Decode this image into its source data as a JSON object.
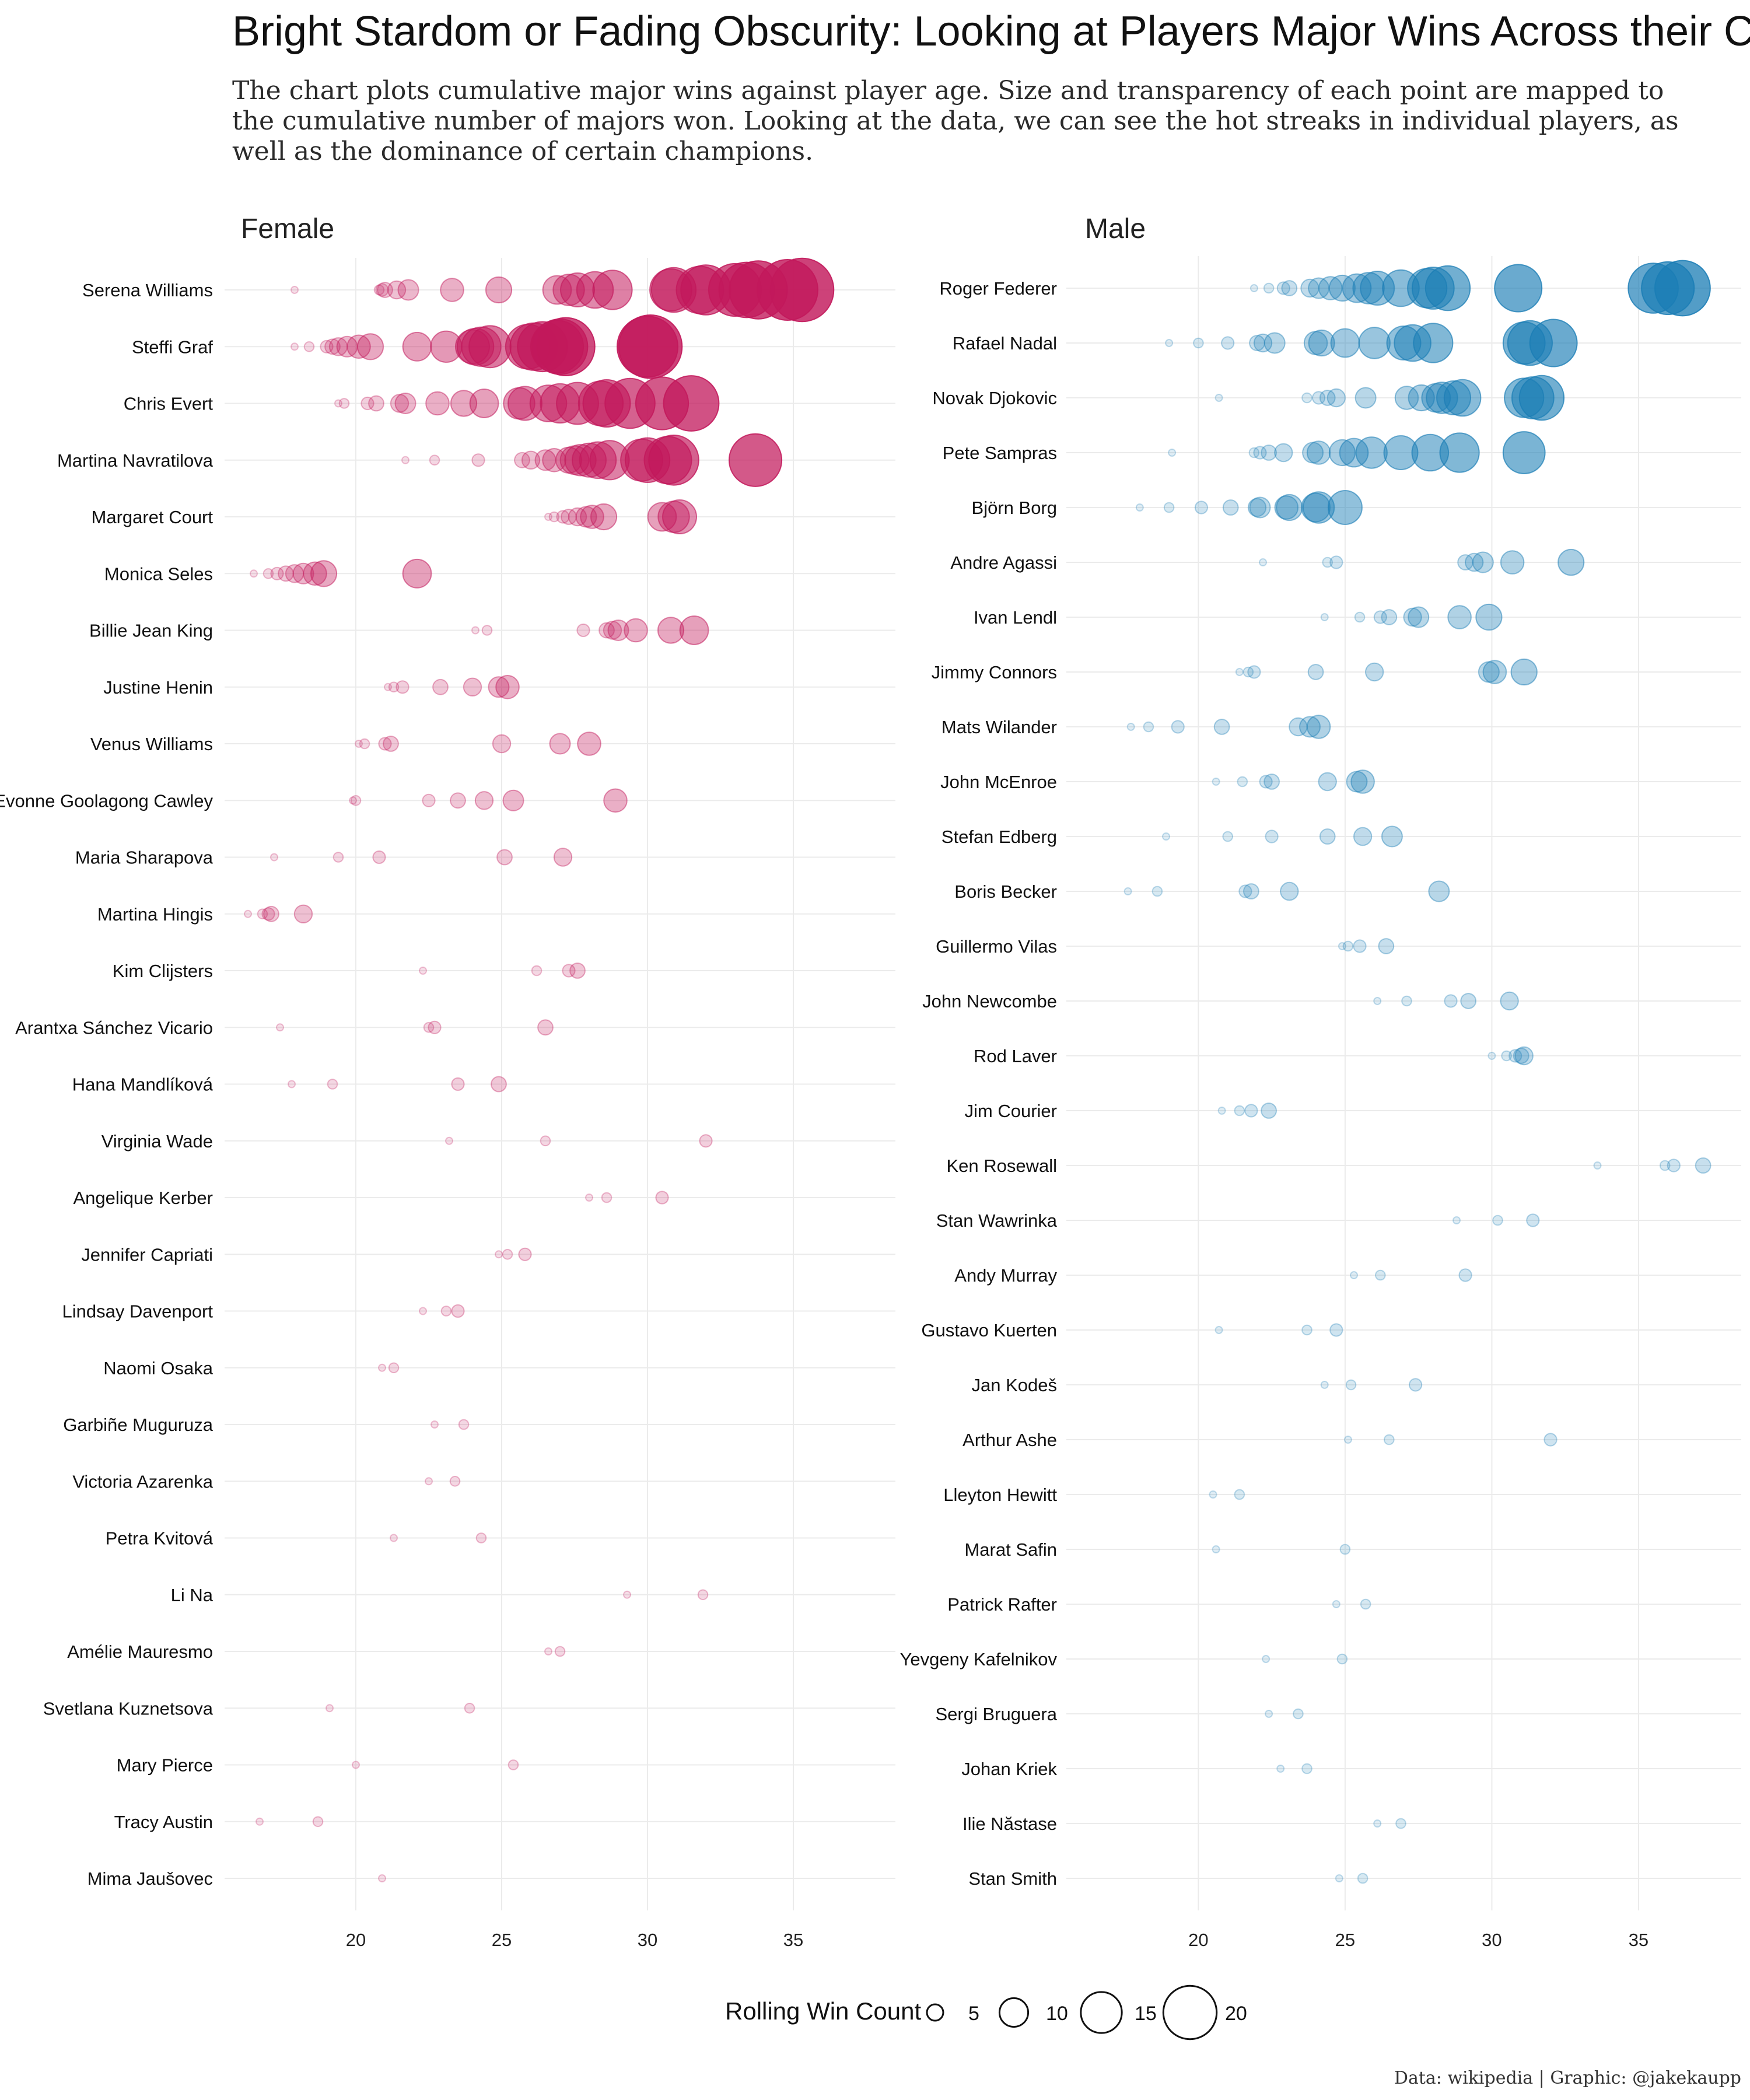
{
  "header": {
    "title": "Bright Stardom or Fading Obscurity: Looking at Players Major Wins Across their Careers.",
    "subtitle_lines": [
      "The chart plots cumulative major wins against player age. Size and transparency of each point are mapped to",
      "the cumulative number of majors won. Looking at the data, we can see the hot streaks in individual players, as",
      "well as the dominance of certain champions."
    ]
  },
  "legend": {
    "title": "Rolling Win Count",
    "entries": [
      5,
      10,
      15,
      20
    ]
  },
  "caption": "Data: wikipedia | Graphic: @jakekaupp",
  "colors": {
    "female": "#c2185b",
    "male": "#1a7db5"
  },
  "chart_data": [
    {
      "type": "scatter",
      "panel": "Female",
      "xlabel": "",
      "ylabel": "",
      "xlim": [
        15.5,
        38.5
      ],
      "xticks": [
        20,
        25,
        30,
        35
      ],
      "grid": true,
      "series": [
        {
          "name": "Serena Williams",
          "ages": [
            17.9,
            20.8,
            20.9,
            21.0,
            21.4,
            21.8,
            23.3,
            24.9,
            26.9,
            27.3,
            27.6,
            28.2,
            28.8,
            30.8,
            30.9,
            31.8,
            32.0,
            33.0,
            33.4,
            33.8,
            34.8,
            35.3
          ]
        },
        {
          "name": "Steffi Graf",
          "ages": [
            17.9,
            18.4,
            19.0,
            19.2,
            19.4,
            19.7,
            20.1,
            20.5,
            22.1,
            23.1,
            24.0,
            24.1,
            24.3,
            24.6,
            25.9,
            26.1,
            26.4,
            26.9,
            27.0,
            27.2,
            30.0,
            30.1
          ]
        },
        {
          "name": "Chris Evert",
          "ages": [
            19.4,
            19.6,
            20.4,
            20.7,
            21.5,
            21.7,
            22.8,
            23.7,
            24.4,
            25.6,
            25.8,
            26.6,
            27.0,
            27.6,
            28.4,
            28.6,
            29.4,
            30.5,
            31.5
          ]
        },
        {
          "name": "Martina Navratilova",
          "ages": [
            21.7,
            22.7,
            24.2,
            25.7,
            26.0,
            26.5,
            26.8,
            27.3,
            27.5,
            27.7,
            28.0,
            28.3,
            28.7,
            29.8,
            30.0,
            30.7,
            30.9,
            33.7
          ]
        },
        {
          "name": "Margaret Court",
          "ages": [
            26.6,
            26.8,
            27.1,
            27.3,
            27.6,
            27.9,
            28.1,
            28.5,
            30.5,
            30.9,
            31.1
          ]
        },
        {
          "name": "Monica Seles",
          "ages": [
            16.5,
            17.0,
            17.3,
            17.6,
            17.9,
            18.2,
            18.6,
            18.9,
            22.1
          ]
        },
        {
          "name": "Billie Jean King",
          "ages": [
            24.1,
            24.5,
            27.8,
            28.6,
            28.8,
            29.0,
            29.6,
            30.8,
            31.6
          ]
        },
        {
          "name": "Justine Henin",
          "ages": [
            21.1,
            21.3,
            21.6,
            22.9,
            24.0,
            24.9,
            25.2
          ]
        },
        {
          "name": "Venus Williams",
          "ages": [
            20.1,
            20.3,
            21.0,
            21.2,
            25.0,
            27.0,
            28.0
          ]
        },
        {
          "name": "Evonne Goolagong Cawley",
          "ages": [
            19.9,
            20.0,
            22.5,
            23.5,
            24.4,
            25.4,
            28.9
          ]
        },
        {
          "name": "Maria Sharapova",
          "ages": [
            17.2,
            19.4,
            20.8,
            25.1,
            27.1
          ]
        },
        {
          "name": "Martina Hingis",
          "ages": [
            16.3,
            16.8,
            17.0,
            17.1,
            18.2
          ]
        },
        {
          "name": "Kim Clijsters",
          "ages": [
            22.3,
            26.2,
            27.3,
            27.6
          ]
        },
        {
          "name": "Arantxa Sánchez Vicario",
          "ages": [
            17.4,
            22.5,
            22.7,
            26.5
          ]
        },
        {
          "name": "Hana Mandlíková",
          "ages": [
            17.8,
            19.2,
            23.5,
            24.9
          ]
        },
        {
          "name": "Virginia Wade",
          "ages": [
            23.2,
            26.5,
            32.0
          ]
        },
        {
          "name": "Angelique Kerber",
          "ages": [
            28.0,
            28.6,
            30.5
          ]
        },
        {
          "name": "Jennifer Capriati",
          "ages": [
            24.9,
            25.2,
            25.8
          ]
        },
        {
          "name": "Lindsay Davenport",
          "ages": [
            22.3,
            23.1,
            23.5
          ]
        },
        {
          "name": "Naomi Osaka",
          "ages": [
            20.9,
            21.3
          ]
        },
        {
          "name": "Garbiñe Muguruza",
          "ages": [
            22.7,
            23.7
          ]
        },
        {
          "name": "Victoria Azarenka",
          "ages": [
            22.5,
            23.4
          ]
        },
        {
          "name": "Petra Kvitová",
          "ages": [
            21.3,
            24.3
          ]
        },
        {
          "name": "Li Na",
          "ages": [
            29.3,
            31.9
          ]
        },
        {
          "name": "Amélie Mauresmo",
          "ages": [
            26.6,
            27.0
          ]
        },
        {
          "name": "Svetlana Kuznetsova",
          "ages": [
            19.1,
            23.9
          ]
        },
        {
          "name": "Mary Pierce",
          "ages": [
            20.0,
            25.4
          ]
        },
        {
          "name": "Tracy Austin",
          "ages": [
            16.7,
            18.7
          ]
        },
        {
          "name": "Mima Jaušovec",
          "ages": [
            20.9
          ]
        }
      ]
    },
    {
      "type": "scatter",
      "panel": "Male",
      "xlabel": "",
      "ylabel": "",
      "xlim": [
        15.5,
        38.5
      ],
      "xticks": [
        20,
        25,
        30,
        35
      ],
      "grid": true,
      "series": [
        {
          "name": "Roger Federer",
          "ages": [
            21.9,
            22.4,
            22.9,
            23.1,
            23.8,
            24.1,
            24.5,
            24.9,
            25.4,
            25.8,
            26.1,
            26.9,
            27.8,
            28.0,
            28.5,
            30.9,
            35.5,
            36.0,
            36.5
          ]
        },
        {
          "name": "Rafael Nadal",
          "ages": [
            19.0,
            20.0,
            21.0,
            22.0,
            22.2,
            22.6,
            24.0,
            24.2,
            25.0,
            26.0,
            27.0,
            27.3,
            28.0,
            31.1,
            31.3,
            32.1
          ]
        },
        {
          "name": "Novak Djokovic",
          "ages": [
            20.7,
            23.7,
            24.1,
            24.4,
            24.7,
            25.7,
            27.1,
            27.6,
            28.1,
            28.3,
            28.7,
            29.0,
            31.1,
            31.4,
            31.7
          ]
        },
        {
          "name": "Pete Sampras",
          "ages": [
            19.1,
            21.9,
            22.1,
            22.4,
            22.9,
            23.9,
            24.1,
            24.9,
            25.3,
            25.9,
            26.9,
            27.9,
            28.9,
            31.1
          ]
        },
        {
          "name": "Björn Borg",
          "ages": [
            18.0,
            19.0,
            20.1,
            21.1,
            22.0,
            22.1,
            23.0,
            23.1,
            24.0,
            24.1,
            25.0
          ]
        },
        {
          "name": "Andre Agassi",
          "ages": [
            22.2,
            24.4,
            24.7,
            29.1,
            29.4,
            29.7,
            30.7,
            32.7
          ]
        },
        {
          "name": "Ivan Lendl",
          "ages": [
            24.3,
            25.5,
            26.2,
            26.5,
            27.3,
            27.5,
            28.9,
            29.9
          ]
        },
        {
          "name": "Jimmy Connors",
          "ages": [
            21.4,
            21.7,
            21.9,
            24.0,
            26.0,
            29.9,
            30.1,
            31.1
          ]
        },
        {
          "name": "Mats Wilander",
          "ages": [
            17.7,
            18.3,
            19.3,
            20.8,
            23.4,
            23.8,
            24.1
          ]
        },
        {
          "name": "John McEnroe",
          "ages": [
            20.6,
            21.5,
            22.3,
            22.5,
            24.4,
            25.4,
            25.6
          ]
        },
        {
          "name": "Stefan Edberg",
          "ages": [
            18.9,
            21.0,
            22.5,
            24.4,
            25.6,
            26.6
          ]
        },
        {
          "name": "Boris Becker",
          "ages": [
            17.6,
            18.6,
            21.6,
            21.8,
            23.1,
            28.2
          ]
        },
        {
          "name": "Guillermo Vilas",
          "ages": [
            24.9,
            25.1,
            25.5,
            26.4
          ]
        },
        {
          "name": "John Newcombe",
          "ages": [
            26.1,
            27.1,
            28.6,
            29.2,
            30.6
          ]
        },
        {
          "name": "Rod Laver",
          "ages": [
            30.0,
            30.5,
            30.8,
            31.0,
            31.1
          ]
        },
        {
          "name": "Jim Courier",
          "ages": [
            20.8,
            21.4,
            21.8,
            22.4
          ]
        },
        {
          "name": "Ken Rosewall",
          "ages": [
            33.6,
            35.9,
            36.2,
            37.2
          ]
        },
        {
          "name": "Stan Wawrinka",
          "ages": [
            28.8,
            30.2,
            31.4
          ]
        },
        {
          "name": "Andy Murray",
          "ages": [
            25.3,
            26.2,
            29.1
          ]
        },
        {
          "name": "Gustavo Kuerten",
          "ages": [
            20.7,
            23.7,
            24.7
          ]
        },
        {
          "name": "Jan Kodeš",
          "ages": [
            24.3,
            25.2,
            27.4
          ]
        },
        {
          "name": "Arthur Ashe",
          "ages": [
            25.1,
            26.5,
            32.0
          ]
        },
        {
          "name": "Lleyton Hewitt",
          "ages": [
            20.5,
            21.4
          ]
        },
        {
          "name": "Marat Safin",
          "ages": [
            20.6,
            25.0
          ]
        },
        {
          "name": "Patrick Rafter",
          "ages": [
            24.7,
            25.7
          ]
        },
        {
          "name": "Yevgeny Kafelnikov",
          "ages": [
            22.3,
            24.9
          ]
        },
        {
          "name": "Sergi Bruguera",
          "ages": [
            22.4,
            23.4
          ]
        },
        {
          "name": "Johan Kriek",
          "ages": [
            22.8,
            23.7
          ]
        },
        {
          "name": "Ilie Năstase",
          "ages": [
            26.1,
            26.9
          ]
        },
        {
          "name": "Stan Smith",
          "ages": [
            24.8,
            25.6
          ]
        }
      ]
    }
  ]
}
